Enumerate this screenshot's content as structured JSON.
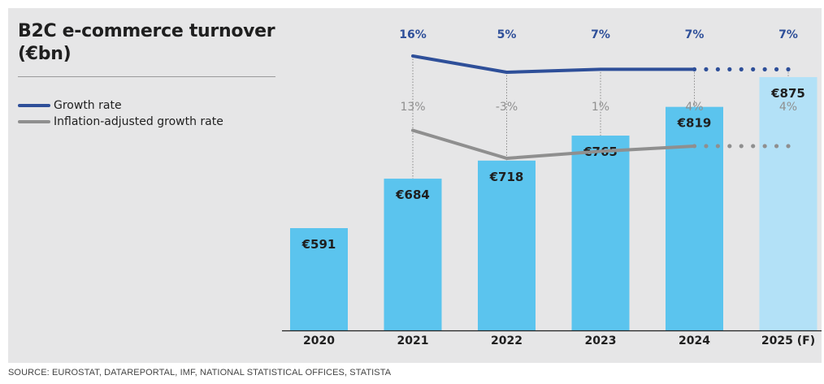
{
  "chart_data": {
    "type": "bar",
    "title": "B2C e-commerce turnover (€bn)",
    "categories": [
      "2020",
      "2021",
      "2022",
      "2023",
      "2024",
      "2025 (F)"
    ],
    "values": [
      591,
      684,
      718,
      765,
      819,
      875
    ],
    "value_labels": [
      "€591",
      "€684",
      "€718",
      "€765",
      "€819",
      "€875"
    ],
    "forecast_flags": [
      false,
      false,
      false,
      false,
      false,
      true
    ],
    "bar_color": "#5bc4ee",
    "forecast_bar_color": "#b3e1f7",
    "lines": [
      {
        "name": "Growth rate",
        "color": "#2e4f99",
        "values": [
          16,
          5,
          7,
          7,
          7
        ],
        "labels": [
          "16%",
          "5%",
          "7%",
          "7%",
          "7%"
        ],
        "label_color": "#2e4f99"
      },
      {
        "name": "Inflation-adjusted growth rate",
        "color": "#8f8f8f",
        "values": [
          13,
          -3,
          1,
          4,
          4
        ],
        "labels": [
          "13%",
          "-3%",
          "1%",
          "4%",
          "4%"
        ],
        "label_color": "#8f8f8f"
      }
    ],
    "legend_position": "top-left"
  },
  "source": "SOURCE: EUROSTAT, DATAREPORTAL, IMF, NATIONAL STATISTICAL OFFICES, STATISTA"
}
